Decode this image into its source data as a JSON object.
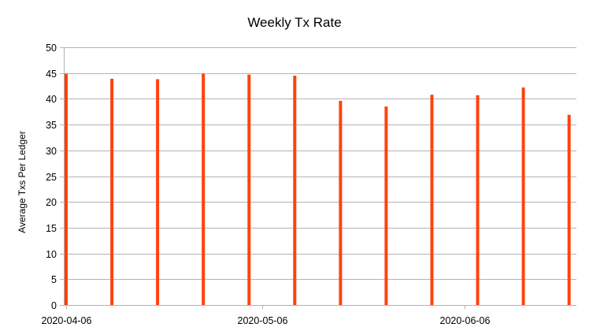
{
  "chart_data": {
    "type": "bar",
    "title": "Weekly Tx Rate",
    "xlabel": "",
    "ylabel": "Average Txs Per Ledger",
    "x": [
      "2020-04-06",
      "2020-04-13",
      "2020-04-20",
      "2020-04-27",
      "2020-05-04",
      "2020-05-11",
      "2020-05-18",
      "2020-05-25",
      "2020-06-01",
      "2020-06-08",
      "2020-06-15",
      "2020-06-22"
    ],
    "values": [
      44.9,
      43.9,
      43.8,
      44.9,
      44.7,
      44.5,
      39.6,
      38.5,
      40.8,
      40.7,
      42.2,
      36.9
    ],
    "x_ticks": [
      "2020-04-06",
      "2020-05-06",
      "2020-06-06"
    ],
    "x_range": [
      "2020-04-06",
      "2020-06-23"
    ],
    "ylim": [
      0,
      50
    ],
    "y_ticks": [
      0,
      5,
      10,
      15,
      20,
      25,
      30,
      35,
      40,
      45,
      50
    ],
    "grid": "horizontal",
    "legend": "none",
    "bar_color": "#ff420e",
    "grid_color": "#b3b3b3",
    "axis_color": "#b3b3b3"
  }
}
